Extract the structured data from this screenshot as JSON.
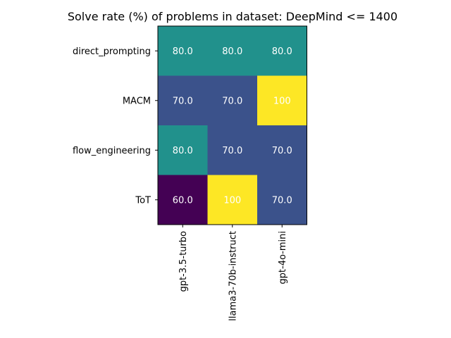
{
  "chart_data": {
    "type": "heatmap",
    "title": "Solve rate (%) of problems in dataset: DeepMind <= 1400",
    "rows": [
      "direct_prompting",
      "MACM",
      "flow_engineering",
      "ToT"
    ],
    "columns": [
      "gpt-3.5-turbo",
      "llama3-70b-instruct",
      "gpt-4o-mini"
    ],
    "values": [
      [
        80.0,
        80.0,
        80.0
      ],
      [
        70.0,
        70.0,
        100
      ],
      [
        80.0,
        70.0,
        70.0
      ],
      [
        60.0,
        100,
        70.0
      ]
    ],
    "value_labels": [
      [
        "80.0",
        "80.0",
        "80.0"
      ],
      [
        "70.0",
        "70.0",
        "100"
      ],
      [
        "80.0",
        "70.0",
        "70.0"
      ],
      [
        "60.0",
        "100",
        "70.0"
      ]
    ],
    "colormap": "viridis",
    "vmin": 60,
    "vmax": 100,
    "colors": {
      "60": "#440154",
      "70": "#3b528b",
      "80": "#21918c",
      "100": "#fde725",
      "cell_text": "#ffffff",
      "axis": "#000000"
    }
  }
}
